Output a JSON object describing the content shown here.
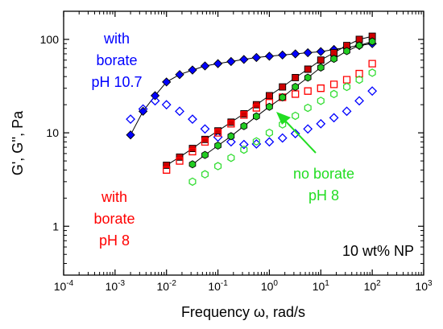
{
  "chart_data": {
    "type": "scatter",
    "xlabel": "Frequency ω, rad/s",
    "ylabel": "G', G'', Pa",
    "xscale": "log",
    "yscale": "log",
    "xlim": [
      0.0001,
      1000
    ],
    "ylim": [
      0.3,
      200
    ],
    "x_tick_labels": [
      "10-4",
      "10-3",
      "10-2",
      "10-1",
      "100",
      "101",
      "102",
      "103"
    ],
    "y_tick_labels": [
      "1",
      "10",
      "100"
    ],
    "annotations": [
      {
        "text": "with",
        "color": "#0000ff"
      },
      {
        "text": "borate",
        "color": "#0000ff"
      },
      {
        "text": "pH 10.7",
        "color": "#0000ff"
      },
      {
        "text": "with",
        "color": "#ff0000"
      },
      {
        "text": "borate",
        "color": "#ff0000"
      },
      {
        "text": "pH 8",
        "color": "#ff0000"
      },
      {
        "text": "no borate",
        "color": "#22dd22"
      },
      {
        "text": "pH 8",
        "color": "#22dd22"
      },
      {
        "text": "10 wt% NP",
        "color": "#000000"
      }
    ],
    "series": [
      {
        "group": "with borate pH 10.7",
        "modulus": "G'",
        "marker": "diamond",
        "filled": true,
        "color": "#0000ff",
        "line": true,
        "x": [
          0.002,
          0.0035,
          0.006,
          0.01,
          0.018,
          0.032,
          0.056,
          0.1,
          0.18,
          0.32,
          0.56,
          1,
          1.8,
          3.2,
          5.6,
          10,
          18,
          32,
          56,
          100
        ],
        "y": [
          9.5,
          17,
          25,
          35,
          42,
          47,
          52,
          55,
          58,
          61,
          64,
          66,
          68,
          70,
          72,
          74,
          78,
          82,
          86,
          90
        ]
      },
      {
        "group": "with borate pH 10.7",
        "modulus": "G''",
        "marker": "diamond",
        "filled": false,
        "color": "#0000ff",
        "line": false,
        "x": [
          0.002,
          0.0035,
          0.006,
          0.01,
          0.018,
          0.032,
          0.056,
          0.1,
          0.18,
          0.32,
          0.56,
          1,
          1.8,
          3.2,
          5.6,
          10,
          18,
          32,
          56,
          100
        ],
        "y": [
          14,
          18,
          22,
          20,
          17,
          14,
          11,
          9,
          8,
          7.5,
          7.6,
          8,
          8.8,
          9.8,
          11,
          12.5,
          14.5,
          17,
          22,
          28
        ]
      },
      {
        "group": "with borate pH 8",
        "modulus": "G'",
        "marker": "square",
        "filled": true,
        "color": "#cc0000",
        "line": true,
        "x": [
          0.01,
          0.018,
          0.032,
          0.056,
          0.1,
          0.18,
          0.32,
          0.56,
          1,
          1.8,
          3.2,
          5.6,
          10,
          18,
          32,
          56,
          100
        ],
        "y": [
          4.5,
          5.5,
          6.8,
          8.5,
          10.5,
          13,
          16,
          20,
          25,
          31,
          39,
          48,
          60,
          72,
          86,
          100,
          108
        ]
      },
      {
        "group": "with borate pH 8",
        "modulus": "G''",
        "marker": "square",
        "filled": false,
        "color": "#ff0000",
        "line": false,
        "x": [
          0.01,
          0.018,
          0.032,
          0.056,
          0.1,
          0.18,
          0.32,
          0.56,
          1,
          1.8,
          3.2,
          5.6,
          10,
          18,
          32,
          56,
          100
        ],
        "y": [
          4,
          5,
          6.3,
          8,
          10,
          12.5,
          15.5,
          18.5,
          21,
          24,
          26,
          28,
          30,
          33,
          37,
          43,
          55
        ]
      },
      {
        "group": "no borate pH 8",
        "modulus": "G'",
        "marker": "hexagon",
        "filled": true,
        "color": "#22cc22",
        "line": true,
        "x": [
          0.032,
          0.056,
          0.1,
          0.18,
          0.32,
          0.56,
          1,
          1.8,
          3.2,
          5.6,
          10,
          18,
          32,
          56,
          100
        ],
        "y": [
          4.6,
          5.8,
          7.3,
          9.2,
          11.8,
          15,
          19,
          24,
          31,
          39,
          50,
          62,
          75,
          86,
          95
        ]
      },
      {
        "group": "no borate pH 8",
        "modulus": "G''",
        "marker": "hexagon",
        "filled": false,
        "color": "#33dd33",
        "line": false,
        "x": [
          0.032,
          0.056,
          0.1,
          0.18,
          0.32,
          0.56,
          1,
          1.8,
          3.2,
          5.6,
          10,
          18,
          32,
          56,
          100
        ],
        "y": [
          3,
          3.6,
          4.4,
          5.4,
          6.6,
          8.1,
          10,
          12.3,
          15.2,
          18.5,
          22,
          26,
          31,
          37,
          44
        ]
      }
    ]
  }
}
